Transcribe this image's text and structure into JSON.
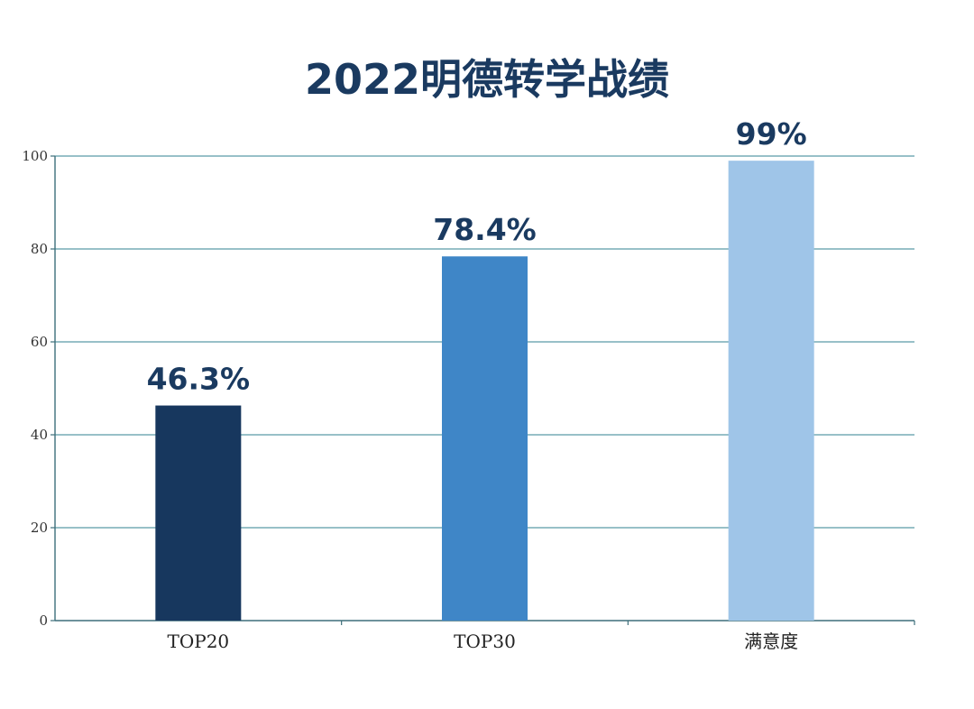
{
  "chart_data": {
    "type": "bar",
    "title": "2022明德转学战绩",
    "categories": [
      "TOP20",
      "TOP30",
      "满意度"
    ],
    "values": [
      46.3,
      78.4,
      99
    ],
    "data_labels": [
      "46.3%",
      "78.4%",
      "99%"
    ],
    "colors": [
      "#17375e",
      "#3f86c7",
      "#9fc5e8"
    ],
    "ylim": [
      0,
      100
    ],
    "yticks": [
      0,
      20,
      40,
      60,
      80,
      100
    ],
    "xlabel": "",
    "ylabel": "",
    "grid": true,
    "grid_color": "#5a9aa6",
    "legend": "none"
  }
}
